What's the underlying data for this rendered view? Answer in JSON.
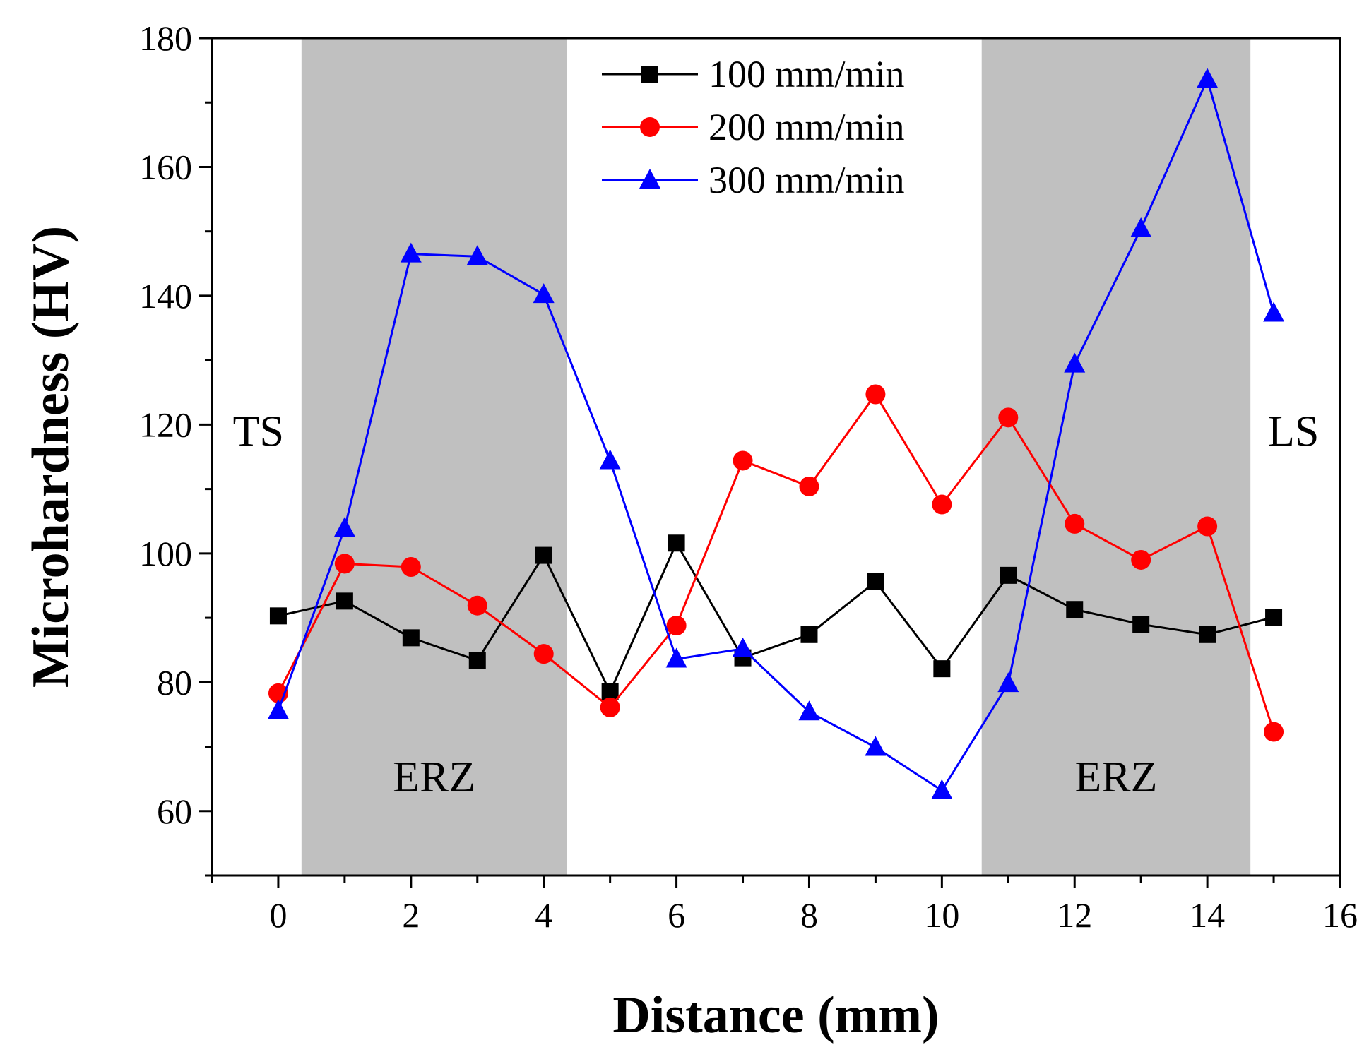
{
  "chart_data": {
    "type": "line",
    "title": "",
    "xlabel": "Distance (mm)",
    "ylabel": "Microhardness (HV)",
    "xlim": [
      -1,
      16
    ],
    "ylim": [
      50,
      180
    ],
    "xticks": [
      0,
      2,
      4,
      6,
      8,
      10,
      12,
      14,
      16
    ],
    "yticks": [
      60,
      80,
      100,
      120,
      140,
      160,
      180
    ],
    "grid": false,
    "legend_position": "top-center",
    "x": [
      0,
      1,
      2,
      3,
      4,
      5,
      6,
      7,
      8,
      9,
      10,
      11,
      12,
      13,
      14,
      15
    ],
    "series": [
      {
        "name": "100 mm/min",
        "color": "#000000",
        "marker": "square",
        "values": [
          90.3,
          92.6,
          86.9,
          83.4,
          99.7,
          78.5,
          101.6,
          83.8,
          87.4,
          95.6,
          82.1,
          96.6,
          91.3,
          89.0,
          87.4,
          90.1
        ]
      },
      {
        "name": "200 mm/min",
        "color": "#ff0000",
        "marker": "circle",
        "values": [
          78.3,
          98.4,
          97.9,
          91.9,
          84.4,
          76.1,
          88.8,
          114.4,
          110.4,
          124.7,
          107.6,
          121.1,
          104.6,
          99.0,
          104.2,
          72.3
        ]
      },
      {
        "name": "300 mm/min",
        "color": "#0000ff",
        "marker": "triangle",
        "values": [
          75.6,
          103.9,
          146.5,
          146.1,
          140.2,
          114.4,
          83.6,
          85.2,
          75.4,
          69.9,
          63.2,
          79.8,
          129.4,
          150.4,
          173.6,
          137.3
        ]
      }
    ],
    "shaded_regions": [
      {
        "label": "ERZ",
        "x_start": 0.35,
        "x_end": 4.35,
        "color": "#c0c0c0"
      },
      {
        "label": "ERZ",
        "x_start": 10.6,
        "x_end": 14.65,
        "color": "#c0c0c0"
      }
    ],
    "annotations": [
      {
        "text": "TS",
        "x": -0.3,
        "y": 120
      },
      {
        "text": "LS",
        "x": 15.3,
        "y": 120
      }
    ]
  }
}
